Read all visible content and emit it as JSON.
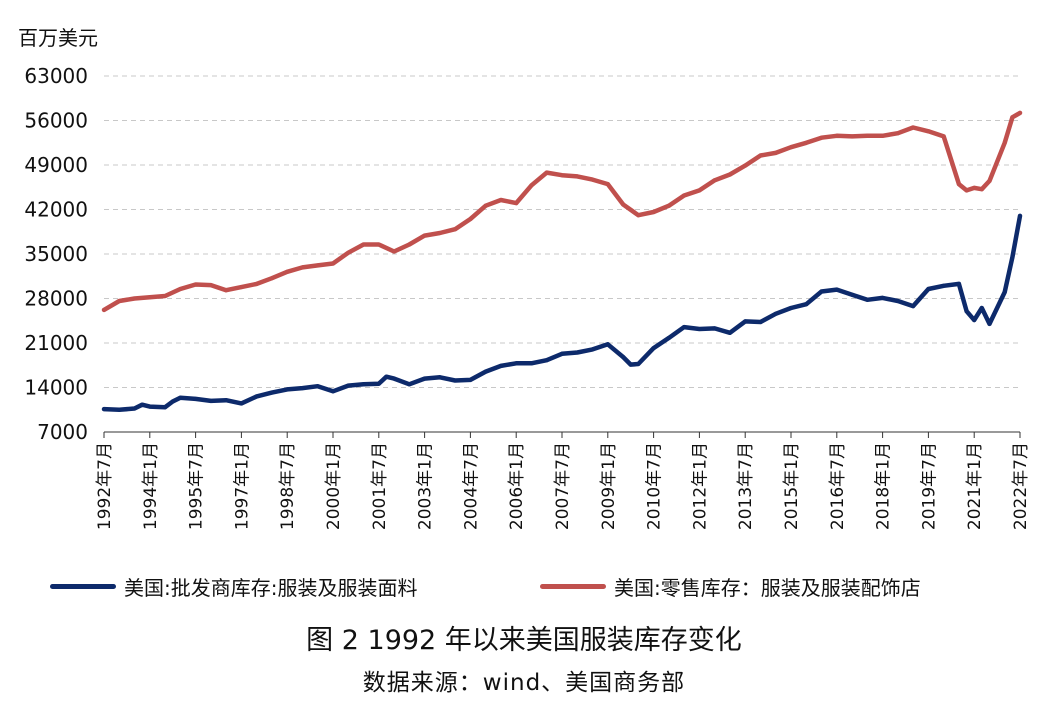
{
  "chart_data": {
    "type": "line",
    "unit_label": "百万美元",
    "ylim": [
      7000,
      63000
    ],
    "yticks": [
      7000,
      14000,
      21000,
      28000,
      35000,
      42000,
      49000,
      56000,
      63000
    ],
    "ytick_labels": [
      "7000",
      "14000",
      "21000",
      "28000",
      "35000",
      "42000",
      "49000",
      "56000",
      "63000"
    ],
    "xlim": [
      "1992-07",
      "2022-07"
    ],
    "xticks": [
      "1992-07",
      "1994-01",
      "1995-07",
      "1997-01",
      "1998-07",
      "2000-01",
      "2001-07",
      "2003-01",
      "2004-07",
      "2006-01",
      "2007-07",
      "2009-01",
      "2010-07",
      "2012-01",
      "2013-07",
      "2015-01",
      "2016-07",
      "2018-01",
      "2019-07",
      "2021-01",
      "2022-07"
    ],
    "xtick_labels": [
      "1992年7月",
      "1994年1月",
      "1995年7月",
      "1997年1月",
      "1998年7月",
      "2000年1月",
      "2001年7月",
      "2003年1月",
      "2004年7月",
      "2006年1月",
      "2007年7月",
      "2009年1月",
      "2010年7月",
      "2012年1月",
      "2013年7月",
      "2015年1月",
      "2016年7月",
      "2018年1月",
      "2019年7月",
      "2021年1月",
      "2022年7月"
    ],
    "grid": "horizontal dashed",
    "legend_position": "bottom",
    "series": [
      {
        "name": "美国:批发商库存:服装及服装面料",
        "color": "#0d2a6b",
        "points": [
          [
            "1992-07",
            10600
          ],
          [
            "1993-01",
            10500
          ],
          [
            "1993-07",
            10700
          ],
          [
            "1993-10",
            11300
          ],
          [
            "1994-01",
            11000
          ],
          [
            "1994-07",
            10900
          ],
          [
            "1994-10",
            11800
          ],
          [
            "1995-01",
            12400
          ],
          [
            "1995-07",
            12200
          ],
          [
            "1996-01",
            11900
          ],
          [
            "1996-07",
            12000
          ],
          [
            "1997-01",
            11500
          ],
          [
            "1997-07",
            12600
          ],
          [
            "1998-01",
            13200
          ],
          [
            "1998-07",
            13700
          ],
          [
            "1999-01",
            13900
          ],
          [
            "1999-07",
            14200
          ],
          [
            "2000-01",
            13400
          ],
          [
            "2000-07",
            14300
          ],
          [
            "2001-01",
            14500
          ],
          [
            "2001-07",
            14600
          ],
          [
            "2001-10",
            15700
          ],
          [
            "2002-01",
            15400
          ],
          [
            "2002-07",
            14500
          ],
          [
            "2003-01",
            15400
          ],
          [
            "2003-07",
            15600
          ],
          [
            "2004-01",
            15100
          ],
          [
            "2004-07",
            15200
          ],
          [
            "2005-01",
            16500
          ],
          [
            "2005-07",
            17400
          ],
          [
            "2006-01",
            17800
          ],
          [
            "2006-07",
            17800
          ],
          [
            "2007-01",
            18300
          ],
          [
            "2007-07",
            19300
          ],
          [
            "2008-01",
            19500
          ],
          [
            "2008-07",
            20000
          ],
          [
            "2009-01",
            20800
          ],
          [
            "2009-07",
            18800
          ],
          [
            "2009-10",
            17600
          ],
          [
            "2010-01",
            17700
          ],
          [
            "2010-07",
            20200
          ],
          [
            "2011-01",
            21800
          ],
          [
            "2011-07",
            23500
          ],
          [
            "2012-01",
            23200
          ],
          [
            "2012-07",
            23300
          ],
          [
            "2013-01",
            22600
          ],
          [
            "2013-07",
            24400
          ],
          [
            "2014-01",
            24300
          ],
          [
            "2014-07",
            25600
          ],
          [
            "2015-01",
            26500
          ],
          [
            "2015-07",
            27100
          ],
          [
            "2016-01",
            29100
          ],
          [
            "2016-07",
            29400
          ],
          [
            "2017-01",
            28600
          ],
          [
            "2017-07",
            27800
          ],
          [
            "2018-01",
            28100
          ],
          [
            "2018-07",
            27600
          ],
          [
            "2019-01",
            26800
          ],
          [
            "2019-07",
            29500
          ],
          [
            "2020-01",
            30000
          ],
          [
            "2020-07",
            30300
          ],
          [
            "2020-10",
            26000
          ],
          [
            "2021-01",
            24600
          ],
          [
            "2021-04",
            26500
          ],
          [
            "2021-07",
            24000
          ],
          [
            "2022-01",
            29000
          ],
          [
            "2022-04",
            34500
          ],
          [
            "2022-07",
            41000
          ]
        ]
      },
      {
        "name": "美国:零售库存：服装及服装配饰店",
        "color": "#c0504d",
        "points": [
          [
            "1992-07",
            26200
          ],
          [
            "1993-01",
            27600
          ],
          [
            "1993-07",
            28000
          ],
          [
            "1994-01",
            28200
          ],
          [
            "1994-07",
            28400
          ],
          [
            "1995-01",
            29500
          ],
          [
            "1995-07",
            30200
          ],
          [
            "1996-01",
            30100
          ],
          [
            "1996-07",
            29300
          ],
          [
            "1997-01",
            29800
          ],
          [
            "1997-07",
            30300
          ],
          [
            "1998-01",
            31200
          ],
          [
            "1998-07",
            32200
          ],
          [
            "1999-01",
            32900
          ],
          [
            "1999-07",
            33200
          ],
          [
            "2000-01",
            33500
          ],
          [
            "2000-07",
            35200
          ],
          [
            "2001-01",
            36500
          ],
          [
            "2001-07",
            36500
          ],
          [
            "2002-01",
            35400
          ],
          [
            "2002-07",
            36500
          ],
          [
            "2003-01",
            37900
          ],
          [
            "2003-07",
            38300
          ],
          [
            "2004-01",
            38900
          ],
          [
            "2004-07",
            40500
          ],
          [
            "2005-01",
            42600
          ],
          [
            "2005-07",
            43500
          ],
          [
            "2006-01",
            43000
          ],
          [
            "2006-07",
            45800
          ],
          [
            "2007-01",
            47800
          ],
          [
            "2007-07",
            47400
          ],
          [
            "2008-01",
            47200
          ],
          [
            "2008-07",
            46700
          ],
          [
            "2009-01",
            46000
          ],
          [
            "2009-07",
            42800
          ],
          [
            "2010-01",
            41100
          ],
          [
            "2010-07",
            41600
          ],
          [
            "2011-01",
            42600
          ],
          [
            "2011-07",
            44200
          ],
          [
            "2012-01",
            45000
          ],
          [
            "2012-07",
            46600
          ],
          [
            "2013-01",
            47500
          ],
          [
            "2013-07",
            48900
          ],
          [
            "2014-01",
            50500
          ],
          [
            "2014-07",
            50900
          ],
          [
            "2015-01",
            51800
          ],
          [
            "2015-07",
            52500
          ],
          [
            "2016-01",
            53300
          ],
          [
            "2016-07",
            53600
          ],
          [
            "2017-01",
            53500
          ],
          [
            "2017-07",
            53600
          ],
          [
            "2018-01",
            53600
          ],
          [
            "2018-07",
            54000
          ],
          [
            "2019-01",
            54900
          ],
          [
            "2019-07",
            54300
          ],
          [
            "2020-01",
            53500
          ],
          [
            "2020-07",
            46000
          ],
          [
            "2020-10",
            45000
          ],
          [
            "2021-01",
            45400
          ],
          [
            "2021-04",
            45200
          ],
          [
            "2021-07",
            46500
          ],
          [
            "2022-01",
            52500
          ],
          [
            "2022-04",
            56500
          ],
          [
            "2022-07",
            57200
          ]
        ]
      }
    ]
  },
  "legend": [
    {
      "label": "美国:批发商库存:服装及服装面料",
      "color": "#0d2a6b"
    },
    {
      "label": "美国:零售库存：服装及服装配饰店",
      "color": "#c0504d"
    }
  ],
  "caption": "图 2 1992 年以来美国服装库存变化",
  "source": "数据来源：wind、美国商务部"
}
